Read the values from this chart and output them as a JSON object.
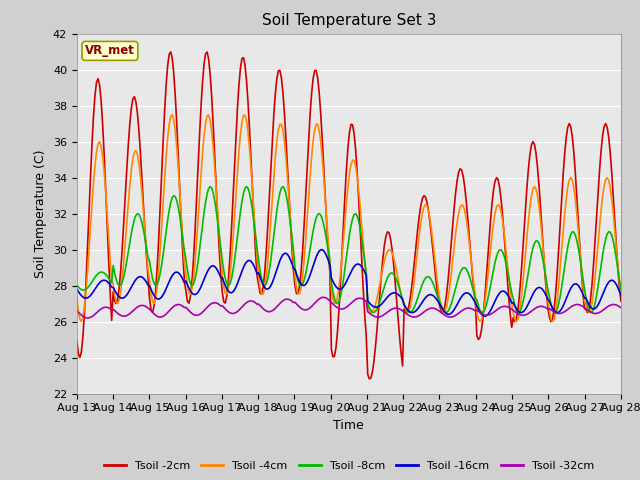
{
  "title": "Soil Temperature Set 3",
  "xlabel": "Time",
  "ylabel": "Soil Temperature (C)",
  "ylim": [
    22,
    42
  ],
  "yticks": [
    22,
    24,
    26,
    28,
    30,
    32,
    34,
    36,
    38,
    40,
    42
  ],
  "xtick_labels": [
    "Aug 13",
    "Aug 14",
    "Aug 15",
    "Aug 16",
    "Aug 17",
    "Aug 18",
    "Aug 19",
    "Aug 20",
    "Aug 21",
    "Aug 22",
    "Aug 23",
    "Aug 24",
    "Aug 25",
    "Aug 26",
    "Aug 27",
    "Aug 28"
  ],
  "colors": {
    "Tsoil -2cm": "#cc0000",
    "Tsoil -4cm": "#ff8800",
    "Tsoil -8cm": "#00bb00",
    "Tsoil -16cm": "#0000cc",
    "Tsoil -32cm": "#aa00aa"
  },
  "plot_bg_color": "#e8e8e8",
  "fig_bg_color": "#d0d0d0",
  "grid_color": "#ffffff",
  "annotation_text": "VR_met",
  "annotation_bg": "#ffffcc",
  "annotation_border": "#999900"
}
